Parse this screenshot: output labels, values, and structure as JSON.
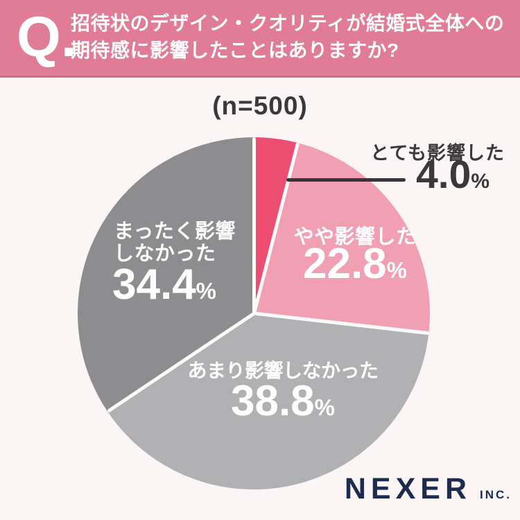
{
  "colors": {
    "background": "#fbf5f6",
    "banner": "#e17c97",
    "text_dark": "#3a383b",
    "white": "#ffffff",
    "navy": "#1d2b4d",
    "leader_line": "#3a323c",
    "separator": "#fdfafb"
  },
  "header": {
    "q_label": "Q.",
    "question_line1": "招待状のデザイン・クオリティが結婚式全体への",
    "question_line2": "期待感に影響したことはありますか?"
  },
  "sample_size_label": "(n=500)",
  "chart_data": {
    "type": "pie",
    "title": "招待状のデザイン・クオリティが結婚式全体への期待感に影響したことはありますか?",
    "n": 500,
    "start_angle_deg": 0,
    "direction": "clockwise",
    "unit": "%",
    "segments": [
      {
        "label": "とても影響した",
        "value": 4.0,
        "display": "4.0",
        "color": "#ee4d72",
        "label_placement": "outside-right-callout"
      },
      {
        "label": "やや影響した",
        "value": 22.8,
        "display": "22.8",
        "color": "#f19fb3",
        "label_placement": "inside"
      },
      {
        "label": "あまり影響しなかった",
        "value": 38.8,
        "display": "38.8",
        "color": "#b1b0b2",
        "label_placement": "inside"
      },
      {
        "label": "まったく影響しなかった",
        "value": 34.4,
        "display": "34.4",
        "color": "#8d8c8f",
        "label_placement": "inside"
      }
    ]
  },
  "display": {
    "pct": "%",
    "mattaku_line1": "まったく影響",
    "mattaku_line2": "しなかった"
  },
  "footer": {
    "brand": "NEXER",
    "brand_suffix": "INC."
  }
}
